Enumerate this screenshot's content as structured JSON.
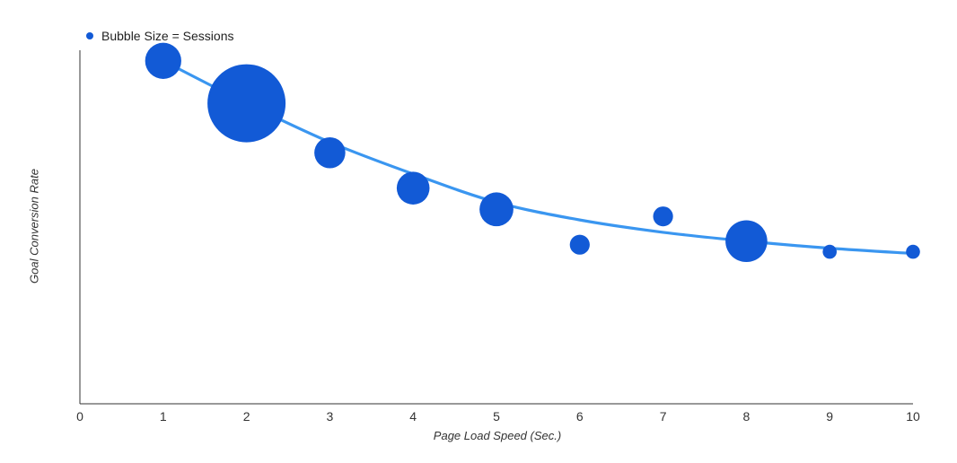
{
  "chart_data": {
    "type": "scatter",
    "title": "",
    "xlabel": "Page Load Speed (Sec.)",
    "ylabel": "Goal Conversion Rate",
    "xlim": [
      0,
      10
    ],
    "ylim": [
      0,
      1
    ],
    "x_ticks": [
      "0",
      "1",
      "2",
      "3",
      "4",
      "5",
      "6",
      "7",
      "8",
      "9",
      "10"
    ],
    "y_ticks": [],
    "grid": false,
    "legend": {
      "placement": "top-left",
      "label": "Bubble Size = Sessions"
    },
    "colors": {
      "bubble": "#125ad6",
      "trend": "#3a96f0",
      "axis": "#333333",
      "tick_text": "#333333",
      "text": "#222222"
    },
    "series": [
      {
        "type": "bubble",
        "points": [
          {
            "x": 1,
            "y": 0.97,
            "size": 45
          },
          {
            "x": 2,
            "y": 0.85,
            "size": 280
          },
          {
            "x": 3,
            "y": 0.71,
            "size": 30
          },
          {
            "x": 4,
            "y": 0.61,
            "size": 35
          },
          {
            "x": 5,
            "y": 0.55,
            "size": 38
          },
          {
            "x": 6,
            "y": 0.45,
            "size": 8
          },
          {
            "x": 7,
            "y": 0.53,
            "size": 8
          },
          {
            "x": 8,
            "y": 0.46,
            "size": 65
          },
          {
            "x": 9,
            "y": 0.43,
            "size": 2
          },
          {
            "x": 10,
            "y": 0.43,
            "size": 2
          }
        ]
      },
      {
        "type": "line",
        "points": [
          {
            "x": 1,
            "y": 0.97
          },
          {
            "x": 2,
            "y": 0.85
          },
          {
            "x": 3,
            "y": 0.74
          },
          {
            "x": 4,
            "y": 0.65
          },
          {
            "x": 5,
            "y": 0.57
          },
          {
            "x": 6,
            "y": 0.52
          },
          {
            "x": 7,
            "y": 0.485
          },
          {
            "x": 8,
            "y": 0.46
          },
          {
            "x": 9,
            "y": 0.44
          },
          {
            "x": 10,
            "y": 0.425
          }
        ]
      }
    ]
  }
}
